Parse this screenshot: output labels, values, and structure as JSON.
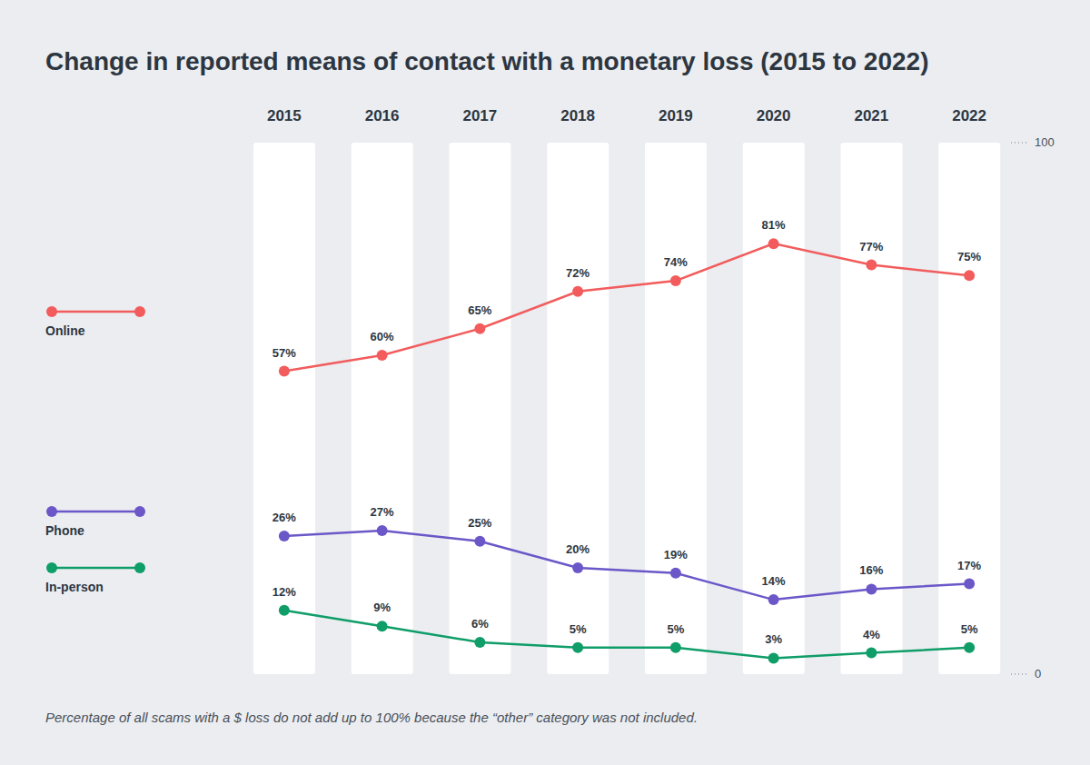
{
  "chart_data": {
    "type": "line",
    "title": "Change in reported means of contact with a monetary loss (2015 to 2022)",
    "categories": [
      "2015",
      "2016",
      "2017",
      "2018",
      "2019",
      "2020",
      "2021",
      "2022"
    ],
    "series": [
      {
        "name": "Online",
        "color": "#f25c5c",
        "values": [
          57,
          60,
          65,
          72,
          74,
          81,
          77,
          75
        ],
        "value_labels": [
          "57%",
          "60%",
          "65%",
          "72%",
          "74%",
          "81%",
          "77%",
          "75%"
        ],
        "marker": "circle"
      },
      {
        "name": "Phone",
        "color": "#6b57c8",
        "values": [
          26,
          27,
          25,
          20,
          19,
          14,
          16,
          17
        ],
        "value_labels": [
          "26%",
          "27%",
          "25%",
          "20%",
          "19%",
          "14%",
          "16%",
          "17%"
        ],
        "marker": "circle"
      },
      {
        "name": "In-person",
        "color": "#0f9d68",
        "values": [
          12,
          9,
          6,
          5,
          5,
          3,
          4,
          5
        ],
        "value_labels": [
          "12%",
          "9%",
          "6%",
          "5%",
          "5%",
          "3%",
          "4%",
          "5%"
        ],
        "marker": "circle"
      }
    ],
    "ylim": [
      0,
      100
    ],
    "yticks": [
      0,
      100
    ],
    "data_labels": true,
    "legend": "left",
    "footnote": "Percentage of all scams with a $ loss do not add up to 100% because the “other” category was not included."
  }
}
